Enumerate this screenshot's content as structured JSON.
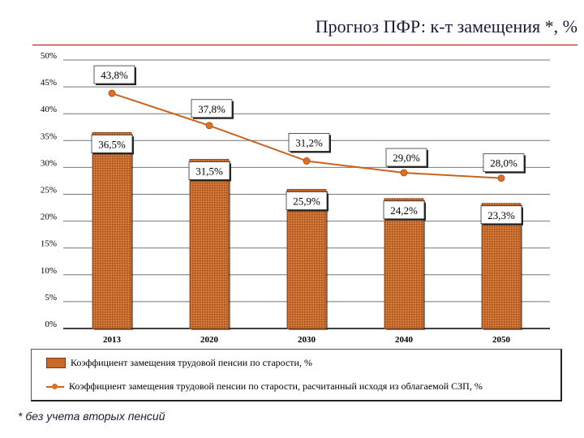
{
  "title": "Прогноз ПФР: к-т замещения *, %",
  "footnote": "* без учета вторых пенсий",
  "legend": {
    "bars_label": "Коэффициент замещения трудовой пенсии по старости, %",
    "line_label": "Коэффициент замещения трудовой пенсии по старости, расчитанный исходя из облагаемой СЗП, %"
  },
  "colors": {
    "bar": "#c76a2c",
    "line": "#c8641f",
    "marker": "#e07020"
  },
  "chart_data": {
    "type": "bar",
    "categories": [
      "2013",
      "2020",
      "2030",
      "2040",
      "2050"
    ],
    "yticks": [
      "0%",
      "5%",
      "10%",
      "15%",
      "20%",
      "25%",
      "30%",
      "35%",
      "40%",
      "45%",
      "50%"
    ],
    "ylim": [
      0,
      50
    ],
    "grid": true,
    "legend_position": "bottom",
    "series": [
      {
        "type": "bar",
        "values": [
          36.5,
          31.5,
          25.9,
          24.2,
          23.3
        ],
        "labels": [
          "36,5%",
          "31,5%",
          "25,9%",
          "24,2%",
          "23,3%"
        ]
      },
      {
        "type": "line",
        "values": [
          43.8,
          37.8,
          31.2,
          29.0,
          28.0
        ],
        "labels": [
          "43,8%",
          "37,8%",
          "31,2%",
          "29,0%",
          "28,0%"
        ]
      }
    ]
  }
}
